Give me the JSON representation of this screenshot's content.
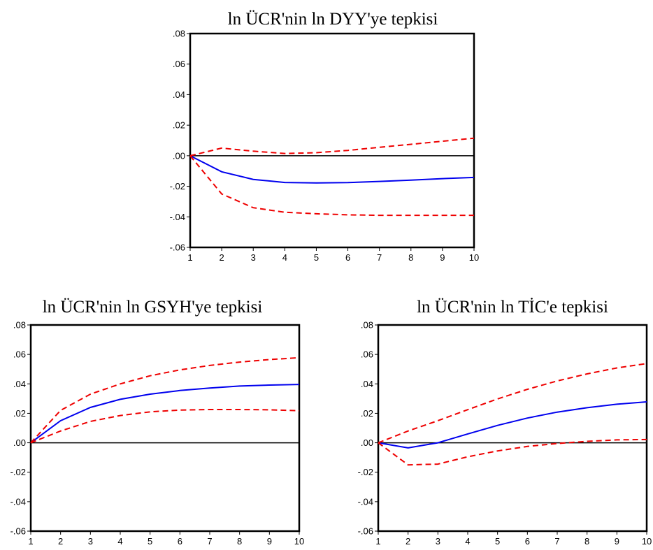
{
  "chart_data": [
    {
      "type": "line",
      "title": "ln ÜCR'nin ln DYY'ye tepkisi",
      "x": [
        1,
        2,
        3,
        4,
        5,
        6,
        7,
        8,
        9,
        10
      ],
      "x_tick_labels": [
        "1",
        "2",
        "3",
        "4",
        "5",
        "6",
        "7",
        "8",
        "9",
        "10"
      ],
      "ylim": [
        -0.06,
        0.08
      ],
      "y_ticks": [
        0.08,
        0.06,
        0.04,
        0.02,
        0.0,
        -0.02,
        -0.04,
        -0.06
      ],
      "y_tick_labels": [
        ".08",
        ".06",
        ".04",
        ".02",
        ".00",
        "-.02",
        "-.04",
        "-.06"
      ],
      "zero_line": true,
      "grid": false,
      "series": [
        {
          "role": "response",
          "color": "#0000ee",
          "style": "solid",
          "values": [
            0.0,
            -0.0105,
            -0.0155,
            -0.0175,
            -0.0178,
            -0.0176,
            -0.0168,
            -0.016,
            -0.015,
            -0.0142
          ]
        },
        {
          "role": "upper_band",
          "color": "#ee0000",
          "style": "dashed",
          "values": [
            0.0,
            0.005,
            0.003,
            0.0015,
            0.002,
            0.0035,
            0.0055,
            0.0075,
            0.0095,
            0.0115
          ]
        },
        {
          "role": "lower_band",
          "color": "#ee0000",
          "style": "dashed",
          "values": [
            0.0,
            -0.025,
            -0.034,
            -0.037,
            -0.038,
            -0.0387,
            -0.039,
            -0.039,
            -0.039,
            -0.039
          ]
        }
      ]
    },
    {
      "type": "line",
      "title": "ln ÜCR'nin ln GSYH'ye tepkisi",
      "x": [
        1,
        2,
        3,
        4,
        5,
        6,
        7,
        8,
        9,
        10
      ],
      "x_tick_labels": [
        "1",
        "2",
        "3",
        "4",
        "5",
        "6",
        "7",
        "8",
        "9",
        "10"
      ],
      "ylim": [
        -0.06,
        0.08
      ],
      "y_ticks": [
        0.08,
        0.06,
        0.04,
        0.02,
        0.0,
        -0.02,
        -0.04,
        -0.06
      ],
      "y_tick_labels": [
        ".08",
        ".06",
        ".04",
        ".02",
        ".00",
        "-.02",
        "-.04",
        "-.06"
      ],
      "zero_line": true,
      "grid": false,
      "series": [
        {
          "role": "response",
          "color": "#0000ee",
          "style": "solid",
          "values": [
            0.0,
            0.015,
            0.024,
            0.0295,
            0.033,
            0.0355,
            0.0372,
            0.0385,
            0.0392,
            0.0396
          ]
        },
        {
          "role": "upper_band",
          "color": "#ee0000",
          "style": "dashed",
          "values": [
            0.0,
            0.022,
            0.033,
            0.04,
            0.0455,
            0.0495,
            0.0525,
            0.0548,
            0.0565,
            0.0578
          ]
        },
        {
          "role": "lower_band",
          "color": "#ee0000",
          "style": "dashed",
          "values": [
            0.0,
            0.008,
            0.0145,
            0.0185,
            0.021,
            0.0222,
            0.0226,
            0.0226,
            0.0224,
            0.0218
          ]
        }
      ]
    },
    {
      "type": "line",
      "title": "ln ÜCR'nin ln TİC'e tepkisi",
      "x": [
        1,
        2,
        3,
        4,
        5,
        6,
        7,
        8,
        9,
        10
      ],
      "x_tick_labels": [
        "1",
        "2",
        "3",
        "4",
        "5",
        "6",
        "7",
        "8",
        "9",
        "10"
      ],
      "ylim": [
        -0.06,
        0.08
      ],
      "y_ticks": [
        0.08,
        0.06,
        0.04,
        0.02,
        0.0,
        -0.02,
        -0.04,
        -0.06
      ],
      "y_tick_labels": [
        ".08",
        ".06",
        ".04",
        ".02",
        ".00",
        "-.02",
        "-.04",
        "-.06"
      ],
      "zero_line": true,
      "grid": false,
      "series": [
        {
          "role": "response",
          "color": "#0000ee",
          "style": "solid",
          "values": [
            0.0,
            -0.0035,
            0.0,
            0.006,
            0.0118,
            0.0168,
            0.0208,
            0.0238,
            0.0262,
            0.0278
          ]
        },
        {
          "role": "upper_band",
          "color": "#ee0000",
          "style": "dashed",
          "values": [
            0.0,
            0.008,
            0.015,
            0.0225,
            0.0298,
            0.0363,
            0.042,
            0.0468,
            0.0508,
            0.0538
          ]
        },
        {
          "role": "lower_band",
          "color": "#ee0000",
          "style": "dashed",
          "values": [
            0.0,
            -0.015,
            -0.0145,
            -0.0095,
            -0.0055,
            -0.0025,
            -0.0005,
            0.001,
            0.002,
            0.0022
          ]
        }
      ]
    }
  ]
}
